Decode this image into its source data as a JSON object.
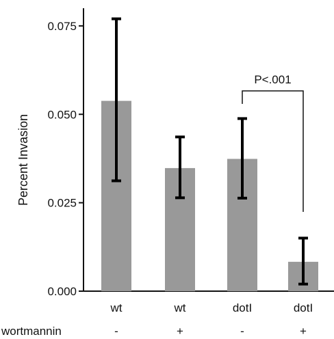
{
  "chart_data": {
    "type": "bar",
    "categories": [
      "wt",
      "wt",
      "dotI",
      "dotI"
    ],
    "values": [
      0.0538,
      0.0348,
      0.0374,
      0.0083
    ],
    "error_low": [
      0.0312,
      0.0264,
      0.0263,
      0.002
    ],
    "error_high": [
      0.077,
      0.0436,
      0.0488,
      0.015
    ],
    "treatment_label": "wortmannin",
    "treatment": [
      "-",
      "+",
      "-",
      "+"
    ],
    "ylabel": "Percent Invasion",
    "xlabel": "",
    "title": "",
    "ylim": [
      0,
      0.08
    ],
    "yticks": [
      "0.000",
      "0.025",
      "0.050",
      "0.075"
    ],
    "ytick_values": [
      0,
      0.025,
      0.05,
      0.075
    ],
    "annotation": {
      "text": "P<.001",
      "from_category_index": 2,
      "to_category_index": 3
    },
    "grid": false,
    "legend": "none",
    "bar_color": "#999999",
    "error_color": "#000000"
  }
}
